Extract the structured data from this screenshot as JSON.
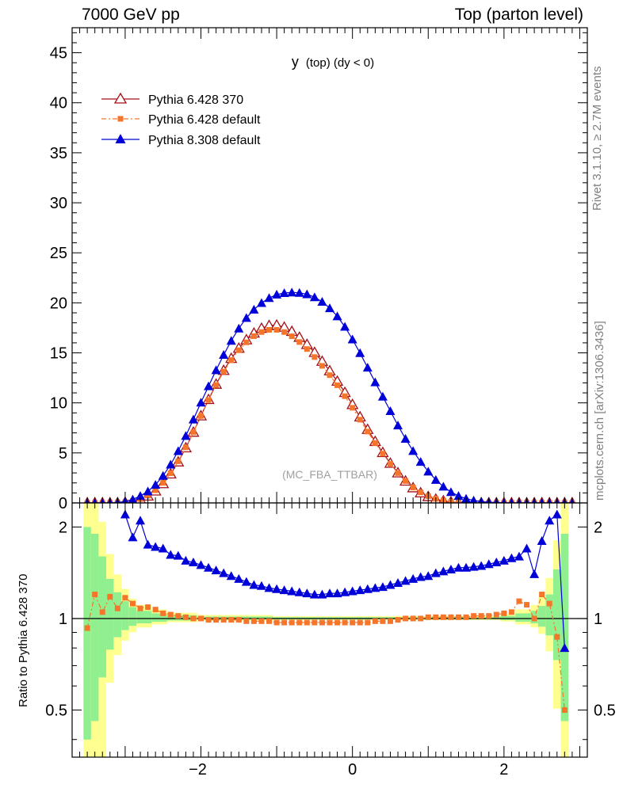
{
  "header": {
    "left": "7000 GeV pp",
    "right": "Top (parton level)"
  },
  "side_labels": {
    "rivet": "Rivet 3.1.10, ≥ 2.7M events",
    "mcplots": "mcplots.cern.ch [arXiv:1306.3436]"
  },
  "colors": {
    "p6_370": "#a50f15",
    "p6_default": "#f5762b",
    "p8": "#0000d8",
    "band_green": "#90f090",
    "band_yellow": "#ffff90"
  },
  "chart_data": [
    {
      "type": "line",
      "title": "y (top) (dy < 0)",
      "title_main": "y",
      "title_sub": "(top) (dy < 0)",
      "watermark": "(MC_FBA_TTBAR)",
      "xlim": [
        -3.7,
        3.1
      ],
      "ylim": [
        0,
        47.5
      ],
      "y_ticks": [
        0,
        5,
        10,
        15,
        20,
        25,
        30,
        35,
        40,
        45
      ],
      "x_ticks": [
        -2,
        0,
        2
      ],
      "legend_placement": "top-left",
      "series": [
        {
          "name": "Pythia 6.428 370",
          "marker": "open-triangle",
          "x": [
            -3.5,
            -3.4,
            -3.3,
            -3.2,
            -3.1,
            -3.0,
            -2.9,
            -2.8,
            -2.7,
            -2.6,
            -2.5,
            -2.4,
            -2.3,
            -2.2,
            -2.1,
            -2.0,
            -1.9,
            -1.8,
            -1.7,
            -1.6,
            -1.5,
            -1.4,
            -1.3,
            -1.2,
            -1.1,
            -1.0,
            -0.9,
            -0.8,
            -0.7,
            -0.6,
            -0.5,
            -0.4,
            -0.3,
            -0.2,
            -0.1,
            0.0,
            0.1,
            0.2,
            0.3,
            0.4,
            0.5,
            0.6,
            0.7,
            0.8,
            0.9,
            1.0,
            1.1,
            1.2,
            1.3,
            1.4,
            1.5,
            1.6,
            1.7,
            1.8,
            1.9,
            2.0,
            2.1,
            2.2,
            2.3,
            2.4,
            2.5,
            2.6,
            2.7,
            2.8,
            2.9
          ],
          "y": [
            0.0,
            0.0,
            0.0,
            0.0,
            0.01,
            0.06,
            0.16,
            0.35,
            0.68,
            1.19,
            1.92,
            2.89,
            4.09,
            5.5,
            7.06,
            8.7,
            10.33,
            11.86,
            13.24,
            14.44,
            15.46,
            16.3,
            16.97,
            17.45,
            17.73,
            17.77,
            17.56,
            17.14,
            16.55,
            15.84,
            15.04,
            14.15,
            13.2,
            12.16,
            11.04,
            9.83,
            8.59,
            7.34,
            6.14,
            5.03,
            3.96,
            3.0,
            2.18,
            1.51,
            1.0,
            0.63,
            0.37,
            0.2,
            0.1,
            0.04,
            0.02,
            0.01,
            0.0,
            0.0,
            0.0,
            0.0,
            0.0,
            0.0,
            0.0,
            0.0,
            0.0,
            0.0,
            0.0,
            0.0,
            0.0
          ]
        },
        {
          "name": "Pythia 6.428 default",
          "marker": "filled-square",
          "x": [
            -3.5,
            -3.4,
            -3.3,
            -3.2,
            -3.1,
            -3.0,
            -2.9,
            -2.8,
            -2.7,
            -2.6,
            -2.5,
            -2.4,
            -2.3,
            -2.2,
            -2.1,
            -2.0,
            -1.9,
            -1.8,
            -1.7,
            -1.6,
            -1.5,
            -1.4,
            -1.3,
            -1.2,
            -1.1,
            -1.0,
            -0.9,
            -0.8,
            -0.7,
            -0.6,
            -0.5,
            -0.4,
            -0.3,
            -0.2,
            -0.1,
            0.0,
            0.1,
            0.2,
            0.3,
            0.4,
            0.5,
            0.6,
            0.7,
            0.8,
            0.9,
            1.0,
            1.1,
            1.2,
            1.3,
            1.4,
            1.5,
            1.6,
            1.7,
            1.8,
            1.9,
            2.0,
            2.1,
            2.2,
            2.3,
            2.4,
            2.5,
            2.6,
            2.7,
            2.8,
            2.9
          ],
          "y": [
            0.0,
            0.0,
            0.0,
            0.0,
            0.01,
            0.06,
            0.17,
            0.38,
            0.72,
            1.27,
            2.0,
            2.97,
            4.16,
            5.55,
            7.07,
            8.69,
            10.28,
            11.78,
            13.12,
            14.28,
            15.26,
            16.05,
            16.67,
            17.08,
            17.3,
            17.3,
            17.08,
            16.66,
            16.08,
            15.38,
            14.58,
            13.7,
            12.77,
            11.76,
            10.67,
            9.51,
            8.32,
            7.13,
            5.99,
            4.93,
            3.9,
            2.98,
            2.19,
            1.54,
            1.05,
            0.68,
            0.41,
            0.23,
            0.12,
            0.05,
            0.02,
            0.01,
            0.0,
            0.0,
            0.0,
            0.0,
            0.0,
            0.0,
            0.0,
            0.0,
            0.0,
            0.0,
            0.0,
            0.0,
            0.0
          ]
        },
        {
          "name": "Pythia 8.308 default",
          "marker": "filled-triangle",
          "x": [
            -3.5,
            -3.4,
            -3.3,
            -3.2,
            -3.1,
            -3.0,
            -2.9,
            -2.8,
            -2.7,
            -2.6,
            -2.5,
            -2.4,
            -2.3,
            -2.2,
            -2.1,
            -2.0,
            -1.9,
            -1.8,
            -1.7,
            -1.6,
            -1.5,
            -1.4,
            -1.3,
            -1.2,
            -1.1,
            -1.0,
            -0.9,
            -0.8,
            -0.7,
            -0.6,
            -0.5,
            -0.4,
            -0.3,
            -0.2,
            -0.1,
            0.0,
            0.1,
            0.2,
            0.3,
            0.4,
            0.5,
            0.6,
            0.7,
            0.8,
            0.9,
            1.0,
            1.1,
            1.2,
            1.3,
            1.4,
            1.5,
            1.6,
            1.7,
            1.8,
            1.9,
            2.0,
            2.1,
            2.2,
            2.3,
            2.4,
            2.5,
            2.6,
            2.7,
            2.8,
            2.9
          ],
          "y": [
            0.0,
            0.0,
            0.0,
            0.0,
            0.03,
            0.15,
            0.35,
            0.7,
            1.16,
            1.81,
            2.71,
            3.84,
            5.19,
            6.7,
            8.34,
            10.03,
            11.67,
            13.27,
            14.8,
            16.21,
            17.44,
            18.5,
            19.33,
            19.99,
            20.48,
            20.83,
            20.98,
            21.04,
            21.0,
            20.86,
            20.56,
            20.11,
            19.47,
            18.65,
            17.61,
            16.35,
            14.98,
            13.53,
            12.06,
            10.63,
            9.18,
            7.75,
            6.41,
            5.2,
            4.11,
            3.14,
            2.31,
            1.63,
            1.09,
            0.7,
            0.43,
            0.25,
            0.13,
            0.07,
            0.03,
            0.01,
            0.0,
            0.0,
            0.0,
            0.0,
            0.0,
            0.0,
            0.0,
            0.0,
            0.0
          ]
        }
      ]
    },
    {
      "type": "line",
      "title": "",
      "ylabel": "Ratio to Pythia 6.428 370",
      "log_scale_y": true,
      "xlim": [
        -3.7,
        3.1
      ],
      "ylim": [
        0.35,
        2.4
      ],
      "y_ticks": [
        0.5,
        1,
        2
      ],
      "x_ticks": [
        -2,
        0,
        2
      ],
      "reference_line": 1,
      "series": [
        {
          "name": "Pythia 6.428 default",
          "marker": "filled-square",
          "x": [
            -3.5,
            -3.4,
            -3.3,
            -3.2,
            -3.1,
            -3.0,
            -2.9,
            -2.8,
            -2.7,
            -2.6,
            -2.5,
            -2.4,
            -2.3,
            -2.2,
            -2.1,
            -2.0,
            -1.9,
            -1.8,
            -1.7,
            -1.6,
            -1.5,
            -1.4,
            -1.3,
            -1.2,
            -1.1,
            -1.0,
            -0.9,
            -0.8,
            -0.7,
            -0.6,
            -0.5,
            -0.4,
            -0.3,
            -0.2,
            -0.1,
            0.0,
            0.1,
            0.2,
            0.3,
            0.4,
            0.5,
            0.6,
            0.7,
            0.8,
            0.9,
            1.0,
            1.1,
            1.2,
            1.3,
            1.4,
            1.5,
            1.6,
            1.7,
            1.8,
            1.9,
            2.0,
            2.1,
            2.2,
            2.3,
            2.4,
            2.5,
            2.6,
            2.7,
            2.8
          ],
          "y": [
            0.93,
            1.2,
            1.05,
            1.18,
            1.08,
            1.17,
            1.12,
            1.08,
            1.09,
            1.07,
            1.04,
            1.03,
            1.02,
            1.01,
            1.0,
            1.0,
            0.99,
            0.99,
            0.99,
            0.99,
            0.99,
            0.98,
            0.98,
            0.98,
            0.98,
            0.97,
            0.97,
            0.97,
            0.97,
            0.97,
            0.97,
            0.97,
            0.97,
            0.97,
            0.97,
            0.97,
            0.97,
            0.97,
            0.98,
            0.98,
            0.98,
            0.99,
            1.0,
            1.0,
            1.0,
            1.01,
            1.01,
            1.01,
            1.01,
            1.01,
            1.01,
            1.02,
            1.02,
            1.02,
            1.03,
            1.04,
            1.05,
            1.14,
            1.11,
            1.0,
            1.2,
            1.12,
            0.87,
            0.5
          ]
        },
        {
          "name": "Pythia 8.308 default",
          "marker": "filled-triangle",
          "x": [
            -3.0,
            -2.9,
            -2.8,
            -2.7,
            -2.6,
            -2.5,
            -2.4,
            -2.3,
            -2.2,
            -2.1,
            -2.0,
            -1.9,
            -1.8,
            -1.7,
            -1.6,
            -1.5,
            -1.4,
            -1.3,
            -1.2,
            -1.1,
            -1.0,
            -0.9,
            -0.8,
            -0.7,
            -0.6,
            -0.5,
            -0.4,
            -0.3,
            -0.2,
            -0.1,
            0.0,
            0.1,
            0.2,
            0.3,
            0.4,
            0.5,
            0.6,
            0.7,
            0.8,
            0.9,
            1.0,
            1.1,
            1.2,
            1.3,
            1.4,
            1.5,
            1.6,
            1.7,
            1.8,
            1.9,
            2.0,
            2.1,
            2.2,
            2.3,
            2.4,
            2.5,
            2.6,
            2.7,
            2.8
          ],
          "y": [
            2.2,
            1.85,
            2.1,
            1.75,
            1.72,
            1.7,
            1.62,
            1.61,
            1.55,
            1.53,
            1.5,
            1.47,
            1.44,
            1.41,
            1.38,
            1.35,
            1.32,
            1.29,
            1.28,
            1.26,
            1.25,
            1.24,
            1.23,
            1.22,
            1.21,
            1.2,
            1.2,
            1.21,
            1.21,
            1.22,
            1.23,
            1.24,
            1.25,
            1.26,
            1.27,
            1.29,
            1.31,
            1.33,
            1.35,
            1.37,
            1.38,
            1.41,
            1.43,
            1.45,
            1.47,
            1.47,
            1.48,
            1.49,
            1.51,
            1.53,
            1.55,
            1.58,
            1.6,
            1.7,
            1.4,
            1.8,
            2.1,
            2.2,
            0.8
          ]
        }
      ]
    }
  ]
}
